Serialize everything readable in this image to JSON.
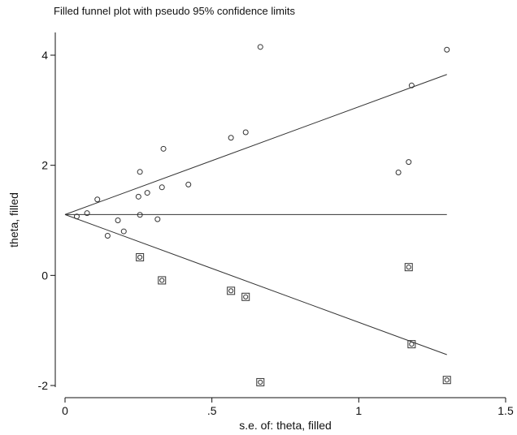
{
  "chart_data": {
    "type": "scatter",
    "title": "Filled funnel plot with pseudo 95% confidence limits",
    "xlabel": "s.e. of: theta, filled",
    "ylabel": "theta, filled",
    "xlim": [
      0,
      1.5
    ],
    "ylim": [
      -2,
      4
    ],
    "x_ticks": [
      {
        "value": 0,
        "label": "0"
      },
      {
        "value": 0.5,
        "label": ".5"
      },
      {
        "value": 1,
        "label": "1"
      },
      {
        "value": 1.5,
        "label": "1.5"
      }
    ],
    "y_ticks": [
      {
        "value": -2,
        "label": "-2"
      },
      {
        "value": 0,
        "label": "0"
      },
      {
        "value": 2,
        "label": "2"
      },
      {
        "value": 4,
        "label": "4"
      }
    ],
    "grid": false,
    "pooled_estimate": 1.105,
    "confidence_limits": {
      "se_max": 1.3,
      "upper_at_max": 3.65,
      "lower_at_max": -1.44
    },
    "series": [
      {
        "marker": "circle",
        "points": [
          {
            "x": 0.04,
            "y": 1.07
          },
          {
            "x": 0.075,
            "y": 1.13
          },
          {
            "x": 0.11,
            "y": 1.38
          },
          {
            "x": 0.145,
            "y": 0.72
          },
          {
            "x": 0.18,
            "y": 1.0
          },
          {
            "x": 0.2,
            "y": 0.8
          },
          {
            "x": 0.25,
            "y": 1.43
          },
          {
            "x": 0.255,
            "y": 1.88
          },
          {
            "x": 0.255,
            "y": 1.1
          },
          {
            "x": 0.28,
            "y": 1.5
          },
          {
            "x": 0.315,
            "y": 1.02
          },
          {
            "x": 0.33,
            "y": 1.6
          },
          {
            "x": 0.335,
            "y": 2.3
          },
          {
            "x": 0.42,
            "y": 1.65
          },
          {
            "x": 0.565,
            "y": 2.5
          },
          {
            "x": 0.615,
            "y": 2.6
          },
          {
            "x": 0.665,
            "y": 4.15
          },
          {
            "x": 1.135,
            "y": 1.87
          },
          {
            "x": 1.17,
            "y": 2.06
          },
          {
            "x": 1.18,
            "y": 3.45
          },
          {
            "x": 1.3,
            "y": 4.1
          }
        ]
      },
      {
        "marker": "square",
        "points": [
          {
            "x": 0.255,
            "y": 0.33
          },
          {
            "x": 0.33,
            "y": -0.09
          },
          {
            "x": 0.565,
            "y": -0.28
          },
          {
            "x": 0.615,
            "y": -0.39
          },
          {
            "x": 0.665,
            "y": -1.94
          },
          {
            "x": 1.17,
            "y": 0.15
          },
          {
            "x": 1.18,
            "y": -1.25
          },
          {
            "x": 1.3,
            "y": -1.9
          }
        ]
      }
    ]
  }
}
